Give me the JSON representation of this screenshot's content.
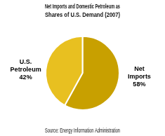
{
  "chart_data": {
    "type": "pie",
    "title": "Net Imports and Domestic Petroleum as\nShares of U.S. Demand (2007)",
    "categories": [
      "Net\nImports",
      "U.S.\nPetroleum"
    ],
    "values": [
      58,
      42
    ],
    "value_labels": [
      "58%",
      "42%"
    ],
    "colors": [
      "#C8A000",
      "#E8C020"
    ],
    "data_labels": true,
    "annotations": [
      "Source: Energy Information Administration"
    ]
  }
}
